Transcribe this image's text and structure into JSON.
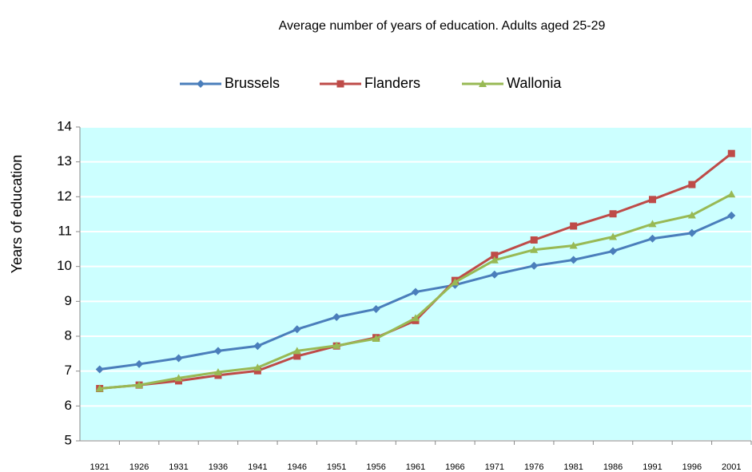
{
  "chart_data": {
    "type": "line",
    "title": "Average number of years of education.  Adults aged 25-29",
    "y_label": "Years of education",
    "categories": [
      "1921",
      "1926",
      "1931",
      "1936",
      "1941",
      "1946",
      "1951",
      "1956",
      "1961",
      "1966",
      "1971",
      "1976",
      "1981",
      "1986",
      "1991",
      "1996",
      "2001"
    ],
    "series": [
      {
        "name": "Brussels",
        "color": "#4a7ebb",
        "marker": "diamond",
        "values": [
          7.05,
          7.2,
          7.37,
          7.58,
          7.72,
          8.2,
          8.55,
          8.78,
          9.27,
          9.47,
          9.77,
          10.02,
          10.19,
          10.44,
          10.8,
          10.96,
          11.46
        ]
      },
      {
        "name": "Flanders",
        "color": "#be4b48",
        "marker": "square",
        "values": [
          6.5,
          6.6,
          6.72,
          6.88,
          7.01,
          7.43,
          7.72,
          7.96,
          8.45,
          9.6,
          10.32,
          10.76,
          11.16,
          11.51,
          11.92,
          12.35,
          13.24
        ]
      },
      {
        "name": "Wallonia",
        "color": "#98b954",
        "marker": "triangle",
        "values": [
          6.5,
          6.6,
          6.8,
          6.97,
          7.1,
          7.58,
          7.73,
          7.93,
          8.52,
          9.55,
          10.18,
          10.48,
          10.6,
          10.85,
          11.22,
          11.47,
          12.07
        ]
      }
    ],
    "ylim": [
      5,
      14
    ],
    "yticks": [
      5,
      6,
      7,
      8,
      9,
      10,
      11,
      12,
      13,
      14
    ],
    "grid": true,
    "plot_background": "#ccffff",
    "legend": "top"
  }
}
